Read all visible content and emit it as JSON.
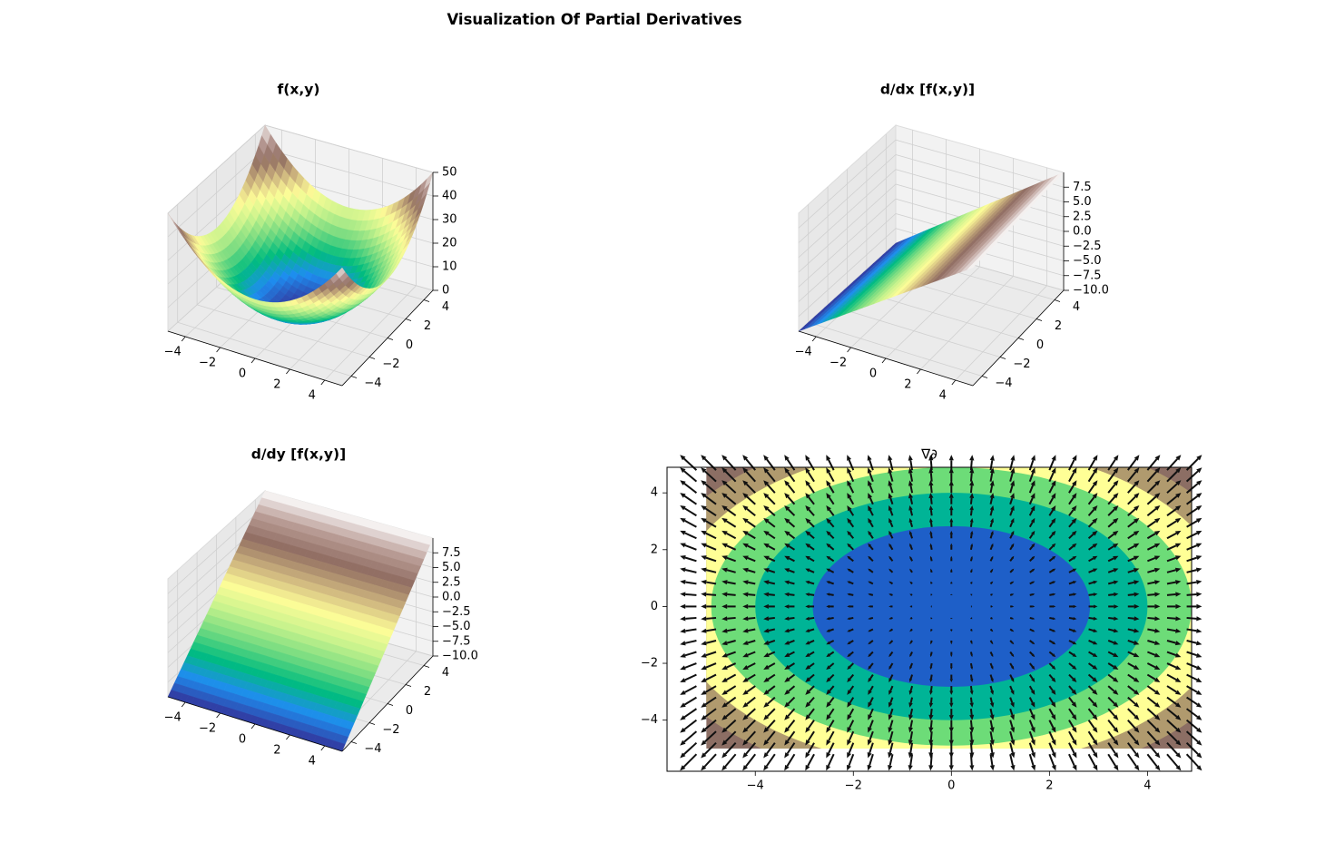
{
  "figure": {
    "suptitle": "Visualization Of Partial Derivatives"
  },
  "colormap_terrain": [
    "#333399",
    "#1e8df0",
    "#00bc7e",
    "#73da80",
    "#c6f28c",
    "#fefd98",
    "#cbb17d",
    "#906d61",
    "#b99c96",
    "#ffffff"
  ],
  "chart_data": [
    {
      "type": "surface",
      "title": "f(x,y)",
      "function": "x^2 + y^2",
      "x_range": [
        -5,
        5
      ],
      "y_range": [
        -5,
        5
      ],
      "z_range": [
        0,
        50
      ],
      "x_ticks": [
        "−4",
        "−2",
        "0",
        "2",
        "4"
      ],
      "y_ticks": [
        "−4",
        "−2",
        "0",
        "2",
        "4"
      ],
      "z_ticks": [
        "0",
        "10",
        "20",
        "30",
        "40",
        "50"
      ],
      "colormap": "terrain",
      "grid": true
    },
    {
      "type": "surface",
      "title": "d/dx [f(x,y)]",
      "function": "2x",
      "x_range": [
        -5,
        5
      ],
      "y_range": [
        -5,
        5
      ],
      "z_range": [
        -10,
        10
      ],
      "x_ticks": [
        "−4",
        "−2",
        "0",
        "2",
        "4"
      ],
      "y_ticks": [
        "−4",
        "−2",
        "0",
        "2",
        "4"
      ],
      "z_ticks": [
        "−10.0",
        "−7.5",
        "−5.0",
        "−2.5",
        "0.0",
        "2.5",
        "5.0",
        "7.5"
      ],
      "colormap": "terrain",
      "grid": true
    },
    {
      "type": "surface",
      "title": "d/dy [f(x,y)]",
      "function": "2y",
      "x_range": [
        -5,
        5
      ],
      "y_range": [
        -5,
        5
      ],
      "z_range": [
        -10,
        10
      ],
      "x_ticks": [
        "−4",
        "−2",
        "0",
        "2",
        "4"
      ],
      "y_ticks": [
        "−4",
        "−2",
        "0",
        "2",
        "4"
      ],
      "z_ticks": [
        "−10.0",
        "−7.5",
        "−5.0",
        "−2.5",
        "0.0",
        "2.5",
        "5.0",
        "7.5"
      ],
      "colormap": "terrain",
      "grid": true
    },
    {
      "type": "contour_quiver",
      "title": "∇∂",
      "function": "x^2 + y^2",
      "contour_levels": [
        0,
        8,
        16,
        24,
        32,
        40,
        48
      ],
      "contour_colors": [
        "#1e5fc8",
        "#00b496",
        "#6ddc78",
        "#ffff96",
        "#b09a6e",
        "#8c6e64"
      ],
      "quiver": "gradient (2x, 2y)",
      "quiver_range": [
        -5.2,
        4.8
      ],
      "quiver_step": 0.4,
      "xlim": [
        -5.8,
        4.9
      ],
      "ylim": [
        -5.8,
        4.9
      ],
      "x_ticks": [
        "−4",
        "−2",
        "0",
        "2",
        "4"
      ],
      "y_ticks": [
        "−4",
        "−2",
        "0",
        "2",
        "4"
      ],
      "x_tick_values": [
        -4,
        -2,
        0,
        2,
        4
      ],
      "y_tick_values": [
        -4,
        -2,
        0,
        2,
        4
      ]
    }
  ]
}
